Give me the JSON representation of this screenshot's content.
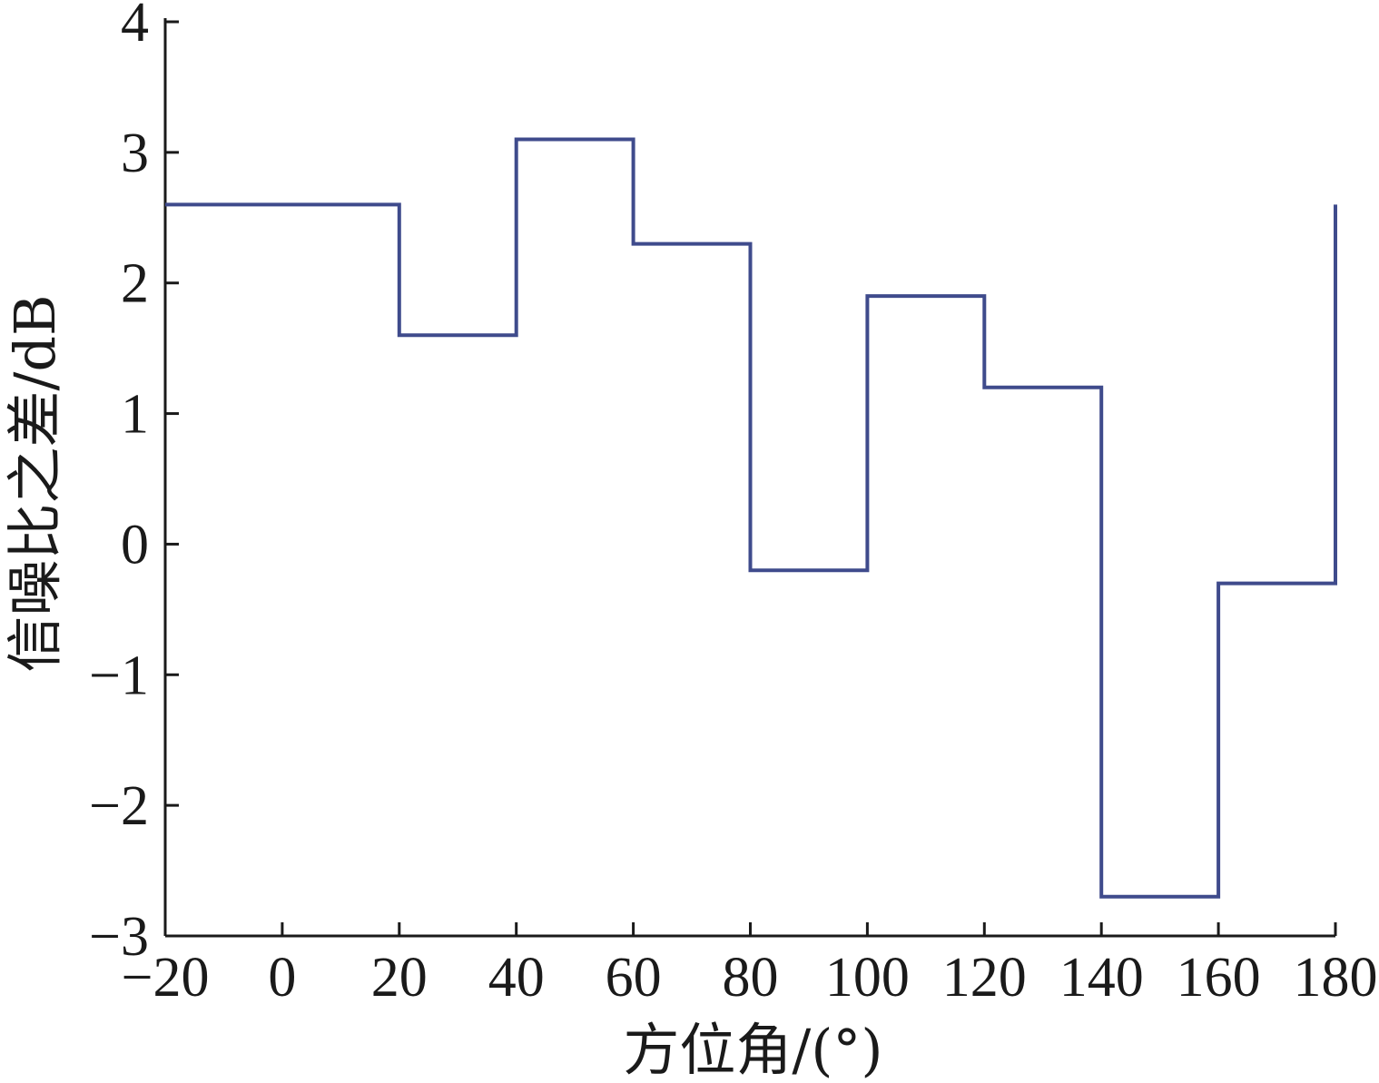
{
  "chart_data": {
    "type": "line",
    "step": true,
    "xlabel": "方位角/(°)",
    "ylabel": "信噪比之差/dB",
    "xlim": [
      -20,
      180
    ],
    "ylim": [
      -3,
      4
    ],
    "xticks": [
      -20,
      0,
      20,
      40,
      60,
      80,
      100,
      120,
      140,
      160,
      180
    ],
    "yticks": [
      4,
      3,
      2,
      1,
      0,
      -1,
      -2,
      -3
    ],
    "xtick_labels": [
      "−20",
      "0",
      "20",
      "40",
      "60",
      "80",
      "100",
      "120",
      "140",
      "160",
      "180"
    ],
    "ytick_labels": [
      "4",
      "3",
      "2",
      "1",
      "0",
      "−1",
      "−2",
      "−3"
    ],
    "grid": false,
    "series": [
      {
        "color": "#3f4b8c",
        "x": [
          -20,
          20,
          20,
          40,
          40,
          60,
          60,
          80,
          80,
          100,
          100,
          120,
          120,
          140,
          140,
          160,
          160,
          180,
          180
        ],
        "y": [
          2.6,
          2.6,
          1.6,
          1.6,
          3.1,
          3.1,
          2.3,
          2.3,
          -0.2,
          -0.2,
          1.9,
          1.9,
          1.2,
          1.2,
          -2.7,
          -2.7,
          -0.3,
          -0.3,
          2.6
        ]
      }
    ]
  }
}
